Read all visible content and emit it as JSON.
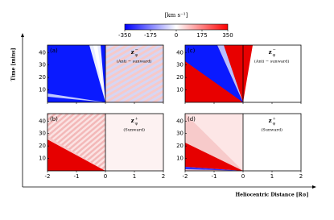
{
  "colorbar": {
    "label": "[km s⁻¹]",
    "ticks": [
      -350,
      -175,
      0,
      175,
      350
    ],
    "lim": [
      -350,
      350
    ],
    "colors": [
      "#0000ff",
      "#ffffff",
      "#ff0000"
    ]
  },
  "y_axis": {
    "label": "Time [mins]",
    "ticks": [
      10,
      20,
      30,
      40
    ],
    "lim": [
      0,
      46
    ]
  },
  "x_axis": {
    "label": "Heliocentric Distance [R⊙]",
    "ticks": [
      -2,
      -1,
      0,
      1,
      2
    ],
    "lim": [
      -2,
      2
    ]
  },
  "panels": [
    {
      "tag": "(a)",
      "base": "z",
      "sup": "−",
      "sub": "φ",
      "note": "(Anti − sunward)"
    },
    {
      "tag": "(c)",
      "base": "z",
      "sup": "−",
      "sub": "φ",
      "note": "(Anti − sunward)"
    },
    {
      "tag": "(b)",
      "base": "z",
      "sup": "+",
      "sub": "φ",
      "note": "(Sunward)"
    },
    {
      "tag": "(d)",
      "base": "z",
      "sup": "+",
      "sub": "φ",
      "note": "(Sunward)"
    }
  ]
}
